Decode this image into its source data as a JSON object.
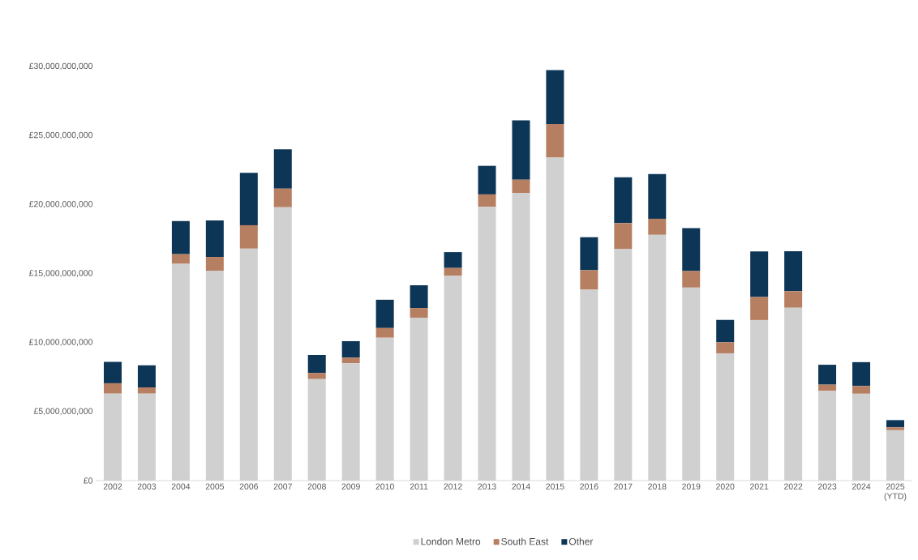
{
  "chart_data": {
    "type": "bar",
    "stacked": true,
    "categories": [
      "2002",
      "2003",
      "2004",
      "2005",
      "2006",
      "2007",
      "2008",
      "2009",
      "2010",
      "2011",
      "2012",
      "2013",
      "2014",
      "2015",
      "2016",
      "2017",
      "2018",
      "2019",
      "2020",
      "2021",
      "2022",
      "2023",
      "2024",
      "2025 (YTD)"
    ],
    "series": [
      {
        "name": "London Metro",
        "color": "#d0d0d0",
        "values": [
          6300000000,
          6300000000,
          15700000000,
          15200000000,
          16800000000,
          19800000000,
          7350000000,
          8500000000,
          10350000000,
          11800000000,
          14850000000,
          19830000000,
          20840000000,
          23400000000,
          13830000000,
          16790000000,
          17800000000,
          13980000000,
          9220000000,
          11630000000,
          12520000000,
          6500000000,
          6290000000,
          3650000000
        ]
      },
      {
        "name": "South East",
        "color": "#b77f62",
        "values": [
          750000000,
          450000000,
          700000000,
          1000000000,
          1700000000,
          1350000000,
          450000000,
          400000000,
          700000000,
          700000000,
          550000000,
          900000000,
          960000000,
          2430000000,
          1410000000,
          1860000000,
          1170000000,
          1200000000,
          800000000,
          1670000000,
          1200000000,
          450000000,
          560000000,
          210000000
        ]
      },
      {
        "name": "Other",
        "color": "#0d3556",
        "values": [
          1550000000,
          1600000000,
          2400000000,
          2650000000,
          3800000000,
          2850000000,
          1300000000,
          1200000000,
          2050000000,
          1650000000,
          1150000000,
          2070000000,
          4300000000,
          3900000000,
          2390000000,
          3320000000,
          3230000000,
          3110000000,
          1620000000,
          3300000000,
          2900000000,
          1440000000,
          1730000000,
          520000000
        ]
      }
    ],
    "ylim": [
      0,
      30000000000
    ],
    "yticks": [
      {
        "value": 0,
        "label": "£0"
      },
      {
        "value": 5000000000,
        "label": "£5,000,000,000"
      },
      {
        "value": 10000000000,
        "label": "£10,000,000,000"
      },
      {
        "value": 15000000000,
        "label": "£15,000,000,000"
      },
      {
        "value": 20000000000,
        "label": "£20,000,000,000"
      },
      {
        "value": 25000000000,
        "label": "£25,000,000,000"
      },
      {
        "value": 30000000000,
        "label": "£30,000,000,000"
      }
    ],
    "legend": "bottom"
  }
}
